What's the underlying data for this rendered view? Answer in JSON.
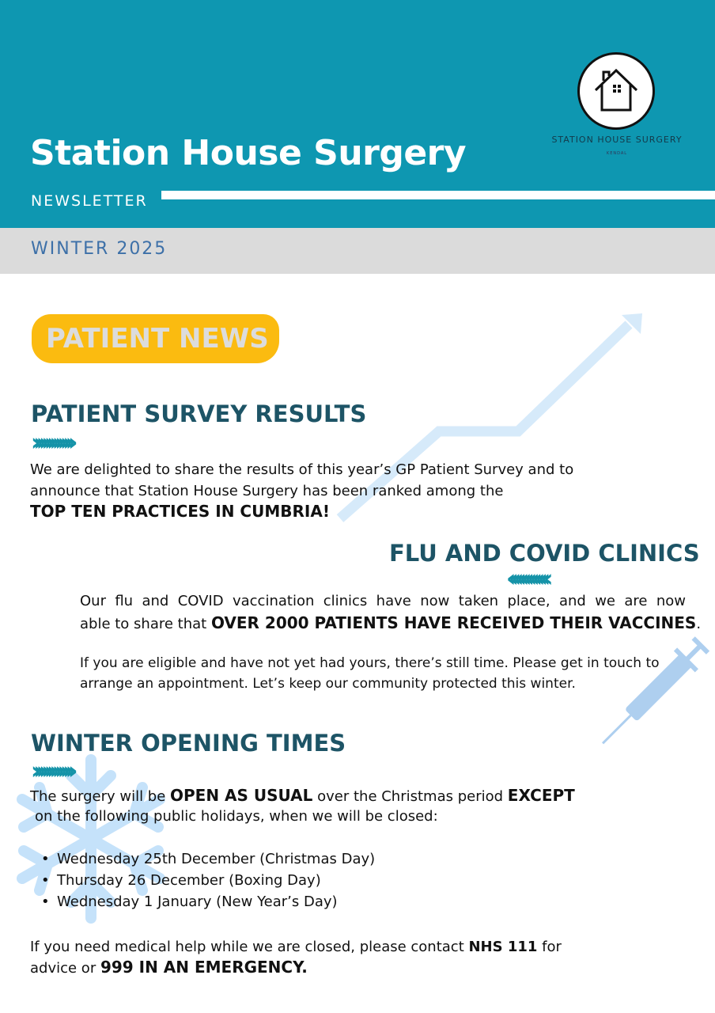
{
  "header": {
    "title": "Station House Surgery",
    "subtitle": "NEWSLETTER",
    "logo_text": "STATION HOUSE SURGERY",
    "logo_subtext": "KENDAL",
    "color": "#0E97B1"
  },
  "edition": "WINTER 2025",
  "section_badge": "PATIENT NEWS",
  "survey": {
    "heading": "PATIENT SURVEY RESULTS",
    "chevrons": "›››››››››››››››",
    "line1": "We are delighted to share the results of this year’s GP Patient Survey and to",
    "line2": "announce that Station House Surgery has been ranked among the",
    "highlight": "TOP TEN PRACTICES IN CUMBRIA",
    "end": "!"
  },
  "flu": {
    "heading": "FLU AND COVID CLINICS",
    "chevrons": "‹‹‹‹‹‹‹‹‹‹‹‹‹‹‹",
    "line1": "Our flu and COVID vaccination clinics have now taken place, and we are now",
    "line2_start": "able to share that ",
    "highlight": "OVER 2000 PATIENTS HAVE RECEIVED THEIR VACCINES",
    "end": ".",
    "para2_line1": "If you are eligible and have not yet had yours, there’s still time. Please get in touch to",
    "para2_line2": "arrange an appointment. Let’s keep our community protected this winter."
  },
  "opening": {
    "heading": "WINTER OPENING TIMES",
    "chevrons": "›››››››››››››››",
    "l1a": "The surgery will be ",
    "l1b": "OPEN AS USUAL",
    "l1c": " over the Christmas period ",
    "l1d": "EXCEPT",
    "line2": "on the following public holidays, when we will be closed:",
    "holidays": [
      "Wednesday 25th December (Christmas Day)",
      "Thursday 26 December (Boxing Day)",
      "Wednesday 1 January (New Year’s Day)"
    ],
    "help_a": "If you need medical help while we are closed, please contact ",
    "help_b": "NHS 111",
    "help_c": " for",
    "help_d": "advice or ",
    "help_e": "999 IN AN EMERGENCY."
  }
}
